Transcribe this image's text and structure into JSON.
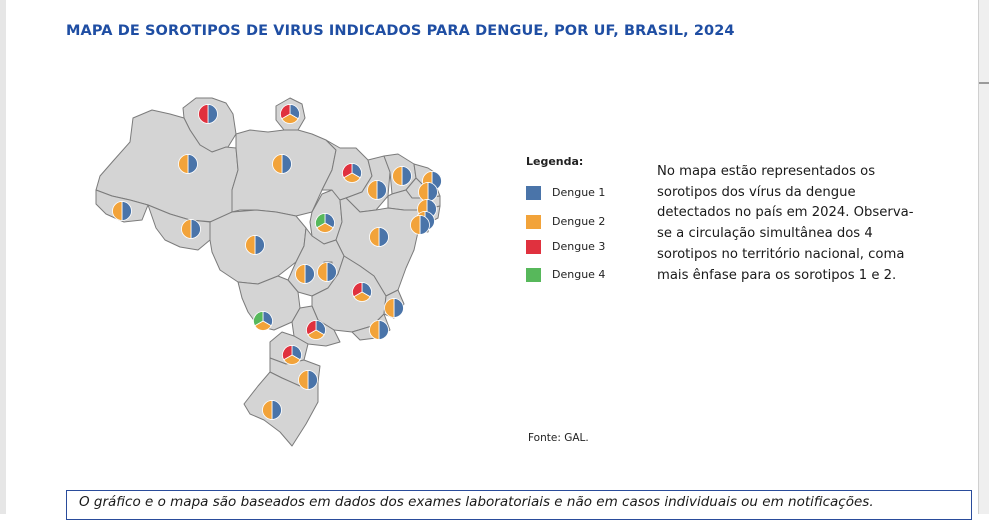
{
  "title": "MAPA DE SOROTIPOS DE VIRUS INDICADOS PARA DENGUE, POR UF, BRASIL, 2024",
  "legend": {
    "title": "Legenda:",
    "items": [
      {
        "label": "Dengue 1",
        "color": "#4a74a9"
      },
      {
        "label": "Dengue 2",
        "color": "#f2a33a"
      },
      {
        "label": "Dengue 3",
        "color": "#e0313e"
      },
      {
        "label": "Dengue 4",
        "color": "#57b85b"
      }
    ]
  },
  "note_lines": [
    "No mapa estão representados os",
    "sorotipos dos vírus da dengue",
    "detectados no país em 2024. Observa-",
    "se a circulação simultânea dos 4",
    "sorotipos no território nacional, coma",
    "mais ênfase para os sorotipos 1 e 2."
  ],
  "source": "Fonte: GAL.",
  "footer": "O gráfico e o mapa são baseados em dados dos exames laboratoriais e não em casos individuais ou em notificações.",
  "map_style": {
    "fill": "#d4d4d4",
    "border": "#7b7b7b"
  },
  "states": [
    {
      "name": "roraima",
      "serotypes": [
        1,
        3
      ]
    },
    {
      "name": "amapa",
      "serotypes": [
        1,
        2,
        3
      ]
    },
    {
      "name": "amazonas",
      "serotypes": [
        1,
        2
      ]
    },
    {
      "name": "para",
      "serotypes": [
        1,
        2
      ]
    },
    {
      "name": "acre",
      "serotypes": [
        1,
        2
      ]
    },
    {
      "name": "rondonia",
      "serotypes": [
        1,
        2
      ]
    },
    {
      "name": "mato-grosso",
      "serotypes": [
        1,
        2
      ]
    },
    {
      "name": "tocantins",
      "serotypes": [
        1,
        2,
        4
      ]
    },
    {
      "name": "maranhao",
      "serotypes": [
        1,
        2,
        3
      ]
    },
    {
      "name": "piaui",
      "serotypes": [
        1,
        2
      ]
    },
    {
      "name": "ceara",
      "serotypes": [
        1,
        2
      ]
    },
    {
      "name": "rio-grande-do-norte",
      "serotypes": [
        1,
        2
      ]
    },
    {
      "name": "paraiba",
      "serotypes": [
        1,
        2
      ]
    },
    {
      "name": "pernambuco",
      "serotypes": [
        1,
        2
      ]
    },
    {
      "name": "alagoas",
      "serotypes": [
        1,
        2
      ]
    },
    {
      "name": "sergipe",
      "serotypes": [
        1,
        2
      ]
    },
    {
      "name": "bahia",
      "serotypes": [
        1,
        2
      ]
    },
    {
      "name": "goias",
      "serotypes": [
        1,
        2
      ]
    },
    {
      "name": "distrito-federal",
      "serotypes": [
        1,
        2
      ]
    },
    {
      "name": "minas-gerais",
      "serotypes": [
        1,
        2,
        3
      ]
    },
    {
      "name": "espirito-santo",
      "serotypes": [
        1,
        2
      ]
    },
    {
      "name": "mato-grosso-do-sul",
      "serotypes": [
        1,
        2,
        4
      ]
    },
    {
      "name": "sao-paulo",
      "serotypes": [
        1,
        2,
        3
      ]
    },
    {
      "name": "rio-de-janeiro",
      "serotypes": [
        1,
        2
      ]
    },
    {
      "name": "parana",
      "serotypes": [
        1,
        2,
        3
      ]
    },
    {
      "name": "santa-catarina",
      "serotypes": [
        1,
        2
      ]
    },
    {
      "name": "rio-grande-do-sul",
      "serotypes": [
        1,
        2
      ]
    }
  ]
}
